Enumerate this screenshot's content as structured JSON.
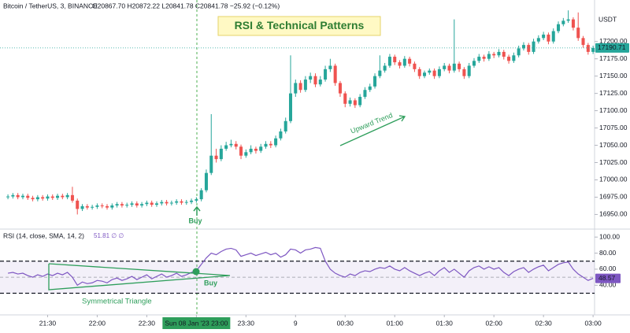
{
  "chart_data": [
    {
      "type": "candlestick",
      "title": "RSI & Technical Patterns",
      "legend": "Bitcoin / TetherUS, 3, BINANCE",
      "ohlc_text": "O20867.70 H20872.22 L20841.78 C20841.78 −25.92 (−0.12%)",
      "y_unit": "USDT",
      "up_color": "#26a69a",
      "down_color": "#ef5350",
      "ylim": [
        16930,
        17260
      ],
      "yticks": [
        {
          "value": 16950,
          "label": "16950.00"
        },
        {
          "value": 16975,
          "label": "16975.00"
        },
        {
          "value": 17000,
          "label": "17000.00"
        },
        {
          "value": 17025,
          "label": "17025.00"
        },
        {
          "value": 17050,
          "label": "17050.00"
        },
        {
          "value": 17075,
          "label": "17075.00"
        },
        {
          "value": 17100,
          "label": "17100.00"
        },
        {
          "value": 17125,
          "label": "17125.00"
        },
        {
          "value": 17150,
          "label": "17150.00"
        },
        {
          "value": 17175,
          "label": "17175.00"
        },
        {
          "value": 17200,
          "label": "17200.00"
        }
      ],
      "annotations": {
        "trend": "Upward Trend",
        "buy": "Buy"
      },
      "open": [
        16975,
        16976,
        16978,
        16975,
        16977,
        16974,
        16972,
        16975,
        16973,
        16976,
        16974,
        16977,
        16975,
        16978,
        16970,
        16958,
        16962,
        16960,
        16961,
        16963,
        16962,
        16960,
        16963,
        16965,
        16963,
        16964,
        16966,
        16963,
        16965,
        16967,
        16964,
        16966,
        16968,
        16966,
        16967,
        16969,
        16967,
        16968,
        16970,
        16972,
        16985,
        17010,
        17035,
        17030,
        17045,
        17050,
        17052,
        17048,
        17035,
        17040,
        17045,
        17042,
        17048,
        17052,
        17050,
        17060,
        17070,
        17085,
        17125,
        17140,
        17130,
        17145,
        17150,
        17138,
        17145,
        17160,
        17165,
        17140,
        17125,
        17110,
        17115,
        17108,
        17120,
        17130,
        17135,
        17150,
        17158,
        17165,
        17178,
        17170,
        17165,
        17175,
        17168,
        17160,
        17150,
        17155,
        17158,
        17150,
        17160,
        17165,
        17158,
        17168,
        17160,
        17150,
        17165,
        17172,
        17178,
        17175,
        17182,
        17180,
        17185,
        17178,
        17172,
        17180,
        17190,
        17195,
        17185,
        17200,
        17205,
        17210,
        17200,
        17215,
        17225,
        17230,
        17232,
        17220,
        17205,
        17195,
        17185
      ],
      "high": [
        16979,
        16981,
        16981,
        16980,
        16980,
        16977,
        16978,
        16978,
        16979,
        16979,
        16980,
        16980,
        16981,
        16990,
        16973,
        16965,
        16965,
        16964,
        16966,
        16966,
        16965,
        16966,
        16968,
        16968,
        16967,
        16969,
        16969,
        16968,
        16970,
        16970,
        16969,
        16971,
        16971,
        16970,
        16972,
        16972,
        16971,
        16973,
        16975,
        16988,
        17015,
        17095,
        17045,
        17050,
        17055,
        17058,
        17056,
        17051,
        17044,
        17050,
        17048,
        17052,
        17056,
        17056,
        17064,
        17074,
        17090,
        17180,
        17145,
        17144,
        17150,
        17155,
        17154,
        17150,
        17165,
        17175,
        17168,
        17143,
        17128,
        17119,
        17118,
        17124,
        17134,
        17139,
        17154,
        17180,
        17169,
        17182,
        17181,
        17173,
        17179,
        17178,
        17171,
        17163,
        17158,
        17161,
        17161,
        17164,
        17169,
        17168,
        17232,
        17171,
        17163,
        17169,
        17176,
        17182,
        17181,
        17186,
        17185,
        17189,
        17188,
        17181,
        17184,
        17194,
        17199,
        17198,
        17204,
        17209,
        17214,
        17213,
        17219,
        17229,
        17234,
        17245,
        17235,
        17242,
        17208,
        17198,
        17194
      ],
      "low": [
        16972,
        16973,
        16972,
        16972,
        16971,
        16969,
        16969,
        16970,
        16970,
        16971,
        16971,
        16972,
        16972,
        16967,
        16950,
        16955,
        16957,
        16957,
        16958,
        16959,
        16957,
        16957,
        16960,
        16960,
        16960,
        16961,
        16960,
        16960,
        16962,
        16961,
        16961,
        16963,
        16963,
        16963,
        16964,
        16964,
        16964,
        16965,
        16967,
        16969,
        16982,
        17007,
        17025,
        17027,
        17042,
        17047,
        17044,
        17030,
        17032,
        17037,
        17038,
        17039,
        17045,
        17046,
        17047,
        17057,
        17067,
        17082,
        17120,
        17126,
        17127,
        17140,
        17134,
        17135,
        17142,
        17156,
        17136,
        17120,
        17105,
        17106,
        17104,
        17105,
        17117,
        17127,
        17132,
        17147,
        17155,
        17162,
        17166,
        17161,
        17162,
        17164,
        17156,
        17146,
        17147,
        17152,
        17146,
        17147,
        17157,
        17154,
        17155,
        17156,
        17146,
        17147,
        17162,
        17169,
        17171,
        17172,
        17176,
        17177,
        17174,
        17168,
        17169,
        17177,
        17187,
        17181,
        17182,
        17197,
        17202,
        17196,
        17197,
        17212,
        17222,
        17227,
        17216,
        17201,
        17191,
        17181,
        17182
      ],
      "close": [
        16976,
        16978,
        16975,
        16977,
        16974,
        16972,
        16975,
        16973,
        16976,
        16974,
        16977,
        16975,
        16978,
        16970,
        16958,
        16962,
        16960,
        16961,
        16963,
        16962,
        16960,
        16963,
        16965,
        16963,
        16964,
        16966,
        16963,
        16965,
        16967,
        16964,
        16966,
        16968,
        16966,
        16967,
        16969,
        16967,
        16968,
        16970,
        16972,
        16985,
        17010,
        17035,
        17030,
        17045,
        17050,
        17052,
        17048,
        17035,
        17040,
        17045,
        17042,
        17048,
        17052,
        17050,
        17060,
        17070,
        17085,
        17125,
        17140,
        17130,
        17145,
        17150,
        17138,
        17145,
        17160,
        17165,
        17140,
        17125,
        17110,
        17115,
        17108,
        17120,
        17130,
        17135,
        17150,
        17158,
        17165,
        17178,
        17170,
        17165,
        17175,
        17168,
        17160,
        17150,
        17155,
        17158,
        17150,
        17160,
        17165,
        17158,
        17168,
        17160,
        17150,
        17165,
        17172,
        17178,
        17175,
        17182,
        17180,
        17185,
        17178,
        17172,
        17180,
        17190,
        17195,
        17185,
        17200,
        17205,
        17210,
        17200,
        17215,
        17225,
        17230,
        17232,
        17220,
        17205,
        17195,
        17185,
        17190.71
      ]
    },
    {
      "type": "line",
      "title": "RSI (14, close, SMA, 14, 2)",
      "value_text": "51.81 ∅ ∅",
      "color": "#7e57c2",
      "ylim": [
        5,
        108
      ],
      "yticks": [
        {
          "value": 40,
          "label": "40.00"
        },
        {
          "value": 60,
          "label": "60.00"
        },
        {
          "value": 80,
          "label": "80.00"
        },
        {
          "value": 100,
          "label": "100.00"
        }
      ],
      "band": [
        30,
        70
      ],
      "midline": 50,
      "annotations": {
        "buy": "Buy",
        "pattern": "Symmetrical Triangle"
      },
      "xlim": [
        -1.6,
        118.3
      ],
      "xticks": [
        {
          "value": 8,
          "label": "21:30"
        },
        {
          "value": 18,
          "label": "22:00"
        },
        {
          "value": 28,
          "label": "22:30"
        },
        {
          "value": 38,
          "label": "Sun 08 Jan '23  23:00"
        },
        {
          "value": 48,
          "label": "23:30"
        },
        {
          "value": 58,
          "label": "9"
        },
        {
          "value": 68,
          "label": "00:30"
        },
        {
          "value": 78,
          "label": "01:00"
        },
        {
          "value": 88,
          "label": "01:30"
        },
        {
          "value": 98,
          "label": "02:00"
        },
        {
          "value": 108,
          "label": "02:30"
        },
        {
          "value": 118,
          "label": "03:00"
        }
      ],
      "values": [
        55,
        56,
        54,
        55,
        52,
        50,
        53,
        51,
        54,
        52,
        55,
        53,
        56,
        50,
        40,
        44,
        42,
        43,
        46,
        45,
        43,
        47,
        49,
        46,
        48,
        51,
        47,
        50,
        53,
        48,
        51,
        54,
        50,
        52,
        55,
        51,
        53,
        56,
        58,
        66,
        74,
        80,
        78,
        82,
        85,
        86,
        84,
        76,
        78,
        80,
        77,
        79,
        81,
        78,
        80,
        75,
        78,
        85,
        84,
        80,
        84,
        85,
        87,
        86,
        70,
        60,
        55,
        52,
        50,
        54,
        52,
        56,
        58,
        57,
        60,
        62,
        61,
        64,
        60,
        58,
        62,
        58,
        55,
        52,
        55,
        57,
        52,
        58,
        62,
        56,
        60,
        55,
        50,
        58,
        62,
        64,
        60,
        63,
        60,
        62,
        56,
        52,
        57,
        60,
        62,
        56,
        60,
        63,
        65,
        58,
        62,
        66,
        68,
        69,
        60,
        54,
        50,
        46,
        48.57
      ]
    }
  ]
}
